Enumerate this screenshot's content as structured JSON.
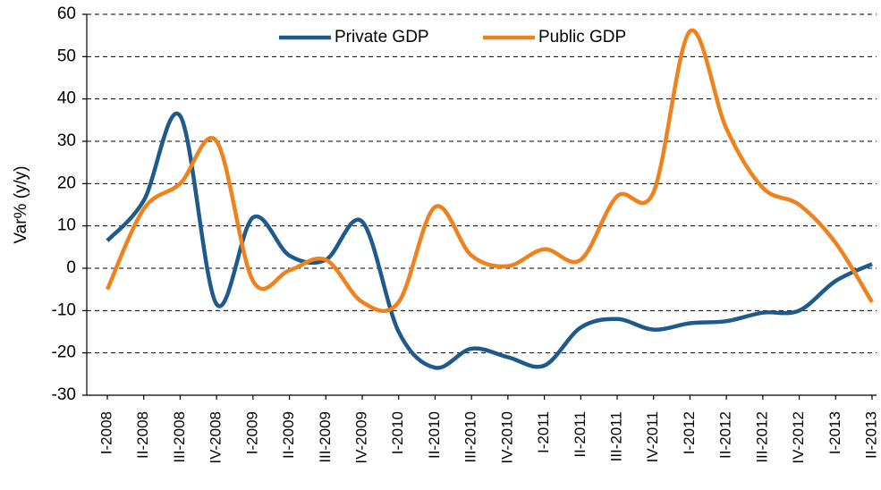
{
  "chart_data": {
    "type": "line",
    "y_label": "Var% (y/y)",
    "categories": [
      "I-2008",
      "II-2008",
      "III-2008",
      "IV-2008",
      "I-2009",
      "II-2009",
      "III-2009",
      "IV-2009",
      "I-2010",
      "II-2010",
      "III-2010",
      "IV-2010",
      "I-2011",
      "II-2011",
      "III-2011",
      "IV-2011",
      "I-2012",
      "II-2012",
      "III-2012",
      "IV-2012",
      "I-2013",
      "II-2013"
    ],
    "series": [
      {
        "name": "Private GDP",
        "color": "#1f5a8c",
        "values": [
          6.5,
          16,
          36,
          -8.5,
          12,
          3,
          2,
          11,
          -15,
          -23.5,
          -19,
          -21,
          -23,
          -14,
          -12,
          -14.5,
          -13,
          -12.5,
          -10.5,
          -10,
          -3,
          1
        ]
      },
      {
        "name": "Public GDP",
        "color": "#f0821e",
        "values": [
          -5,
          14,
          20,
          30,
          -3,
          -0.5,
          2,
          -8,
          -8,
          14.5,
          3,
          0.5,
          4.5,
          2,
          17,
          18,
          56,
          33,
          19,
          15,
          6,
          -8
        ]
      }
    ],
    "ylim": [
      -30,
      60
    ],
    "yticks": [
      -30,
      -20,
      -10,
      0,
      10,
      20,
      30,
      40,
      50,
      60
    ],
    "grid": true,
    "legend": "top"
  }
}
